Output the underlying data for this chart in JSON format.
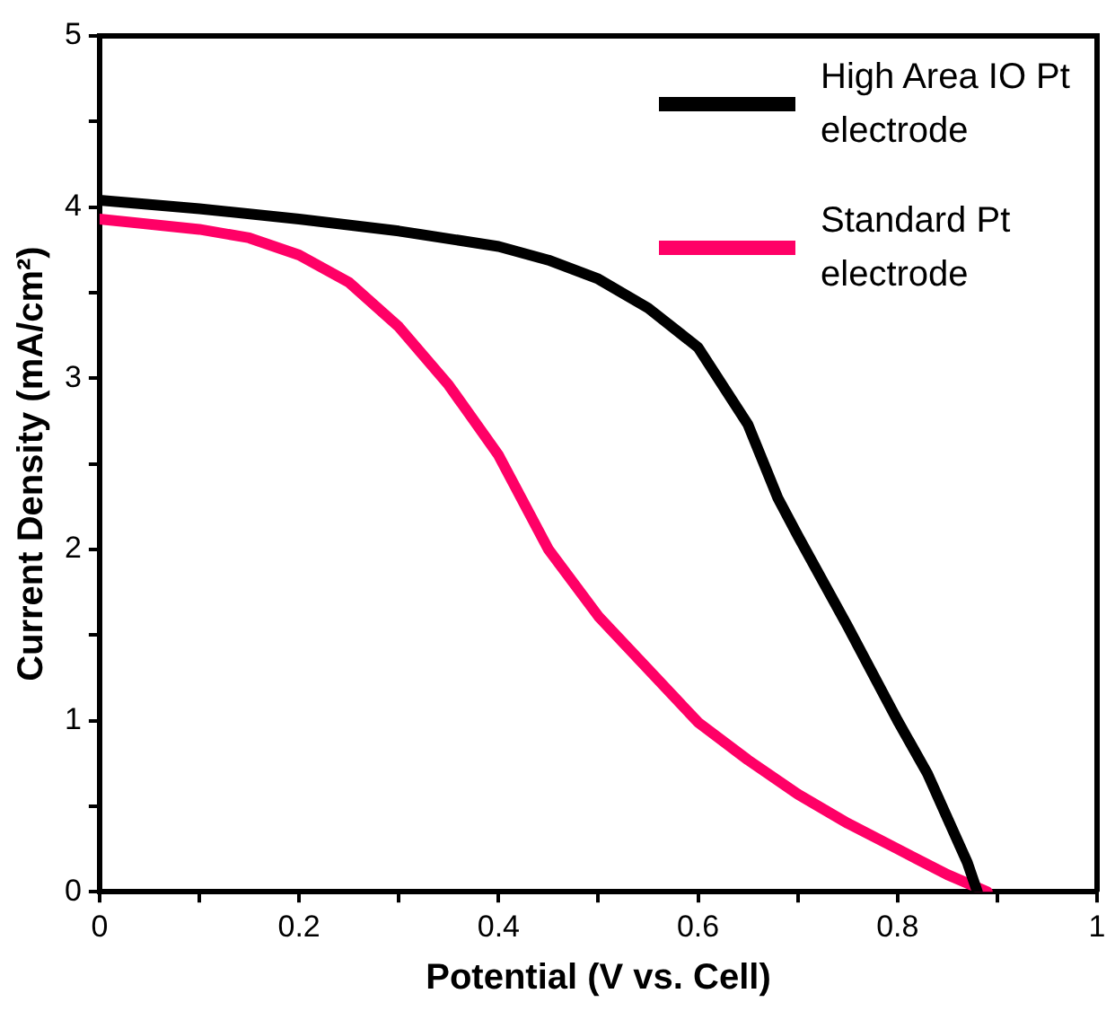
{
  "chart_data": {
    "type": "line",
    "xlabel": "Potential (V vs. Cell)",
    "ylabel": "Current Density (mA/cm²)",
    "xlim": [
      0,
      1
    ],
    "xticks": [
      0,
      {
        "value": 0.1,
        "label": null
      },
      0.2,
      {
        "value": 0.3,
        "label": null
      },
      0.4,
      {
        "value": 0.5,
        "label": null
      },
      0.6,
      {
        "value": 0.7,
        "label": null
      },
      0.8,
      {
        "value": 0.9,
        "label": null
      },
      1
    ],
    "ylim": [
      0,
      5
    ],
    "yticks": [
      0,
      {
        "value": 0.5,
        "label": null
      },
      1,
      {
        "value": 1.5,
        "label": null
      },
      2,
      {
        "value": 2.5,
        "label": null
      },
      3,
      {
        "value": 3.5,
        "label": null
      },
      4,
      {
        "value": 4.5,
        "label": null
      },
      5
    ],
    "grid": false,
    "legend": "top right",
    "marker": "none",
    "line_style": "solid",
    "series": [
      {
        "name": "High Area IO Pt electrode",
        "color": "#000000",
        "x": [
          0,
          0.1,
          0.2,
          0.3,
          0.4,
          0.45,
          0.5,
          0.55,
          0.6,
          0.65,
          0.68,
          0.7,
          0.75,
          0.8,
          0.83,
          0.85,
          0.87,
          0.88
        ],
        "values": [
          4.04,
          3.99,
          3.93,
          3.86,
          3.77,
          3.69,
          3.58,
          3.41,
          3.18,
          2.73,
          2.3,
          2.08,
          1.55,
          1.0,
          0.69,
          0.43,
          0.17,
          0
        ]
      },
      {
        "name": "Standard Pt electrode",
        "color": "#ff0066",
        "x": [
          0,
          0.1,
          0.15,
          0.2,
          0.25,
          0.3,
          0.35,
          0.4,
          0.45,
          0.5,
          0.55,
          0.6,
          0.65,
          0.7,
          0.75,
          0.8,
          0.85,
          0.89
        ],
        "values": [
          3.93,
          3.87,
          3.82,
          3.72,
          3.56,
          3.3,
          2.96,
          2.55,
          2.0,
          1.61,
          1.3,
          0.99,
          0.77,
          0.57,
          0.4,
          0.25,
          0.1,
          0
        ]
      }
    ]
  }
}
